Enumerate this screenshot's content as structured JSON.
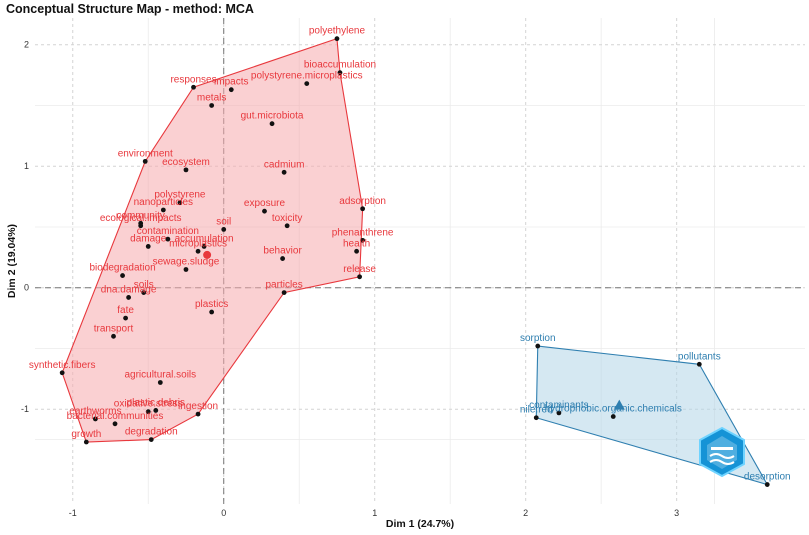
{
  "title": "Conceptual Structure Map - method: MCA",
  "chart_data": {
    "type": "scatter",
    "title": "Conceptual Structure Map - method: MCA",
    "xlabel": "Dim 1 (24.7%)",
    "ylabel": "Dim 2 (19.04%)",
    "xlim": [
      -1.25,
      3.85
    ],
    "ylim": [
      -1.78,
      2.22
    ],
    "x_ticks": [
      -1,
      0,
      1,
      2,
      3
    ],
    "y_ticks": [
      -1,
      0,
      1,
      2
    ],
    "grid": true,
    "clusters": [
      {
        "color": "#e8383d",
        "fill": "#f6a9ad",
        "centroid": [
          -0.11,
          0.27
        ],
        "hull": [
          "polyethylene",
          "bioaccumulation",
          "adsorption",
          "release",
          "particles",
          "ingestion",
          "degradation",
          "growth",
          "synthetic.fibers",
          "environment",
          "responses"
        ],
        "points": [
          {
            "label": "polyethylene",
            "x": 0.75,
            "y": 2.05
          },
          {
            "label": "bioaccumulation",
            "x": 0.77,
            "y": 1.77
          },
          {
            "label": "polystyrene.microplastics",
            "x": 0.55,
            "y": 1.68
          },
          {
            "label": "responses",
            "x": -0.2,
            "y": 1.65
          },
          {
            "label": "impacts",
            "x": 0.05,
            "y": 1.63
          },
          {
            "label": "metals",
            "x": -0.08,
            "y": 1.5
          },
          {
            "label": "gut.microbiota",
            "x": 0.32,
            "y": 1.35
          },
          {
            "label": "environment",
            "x": -0.52,
            "y": 1.04
          },
          {
            "label": "ecosystem",
            "x": -0.25,
            "y": 0.97
          },
          {
            "label": "cadmium",
            "x": 0.4,
            "y": 0.95
          },
          {
            "label": "polystyrene",
            "x": -0.29,
            "y": 0.7
          },
          {
            "label": "adsorption",
            "x": 0.92,
            "y": 0.65
          },
          {
            "label": "nanoparticles",
            "x": -0.4,
            "y": 0.64
          },
          {
            "label": "exposure",
            "x": 0.27,
            "y": 0.63
          },
          {
            "label": "community",
            "x": -0.55,
            "y": 0.53
          },
          {
            "label": "ecological.impacts",
            "x": -0.55,
            "y": 0.51
          },
          {
            "label": "contamination",
            "x": -0.37,
            "y": 0.4
          },
          {
            "label": "soil",
            "x": 0.0,
            "y": 0.48
          },
          {
            "label": "toxicity",
            "x": 0.42,
            "y": 0.51
          },
          {
            "label": "phenanthrene",
            "x": 0.92,
            "y": 0.39
          },
          {
            "label": "accumulation",
            "x": -0.13,
            "y": 0.34
          },
          {
            "label": "damage",
            "x": -0.5,
            "y": 0.34
          },
          {
            "label": "microplastics",
            "x": -0.17,
            "y": 0.3
          },
          {
            "label": "health",
            "x": 0.88,
            "y": 0.3
          },
          {
            "label": "behavior",
            "x": 0.39,
            "y": 0.24
          },
          {
            "label": "sewage.sludge",
            "x": -0.25,
            "y": 0.15
          },
          {
            "label": "biodegradation",
            "x": -0.67,
            "y": 0.1
          },
          {
            "label": "release",
            "x": 0.9,
            "y": 0.09
          },
          {
            "label": "soils",
            "x": -0.53,
            "y": -0.04
          },
          {
            "label": "particles",
            "x": 0.4,
            "y": -0.04
          },
          {
            "label": "dna.damage",
            "x": -0.63,
            "y": -0.08
          },
          {
            "label": "fate",
            "x": -0.65,
            "y": -0.25
          },
          {
            "label": "plastics",
            "x": -0.08,
            "y": -0.2
          },
          {
            "label": "transport",
            "x": -0.73,
            "y": -0.4
          },
          {
            "label": "synthetic.fibers",
            "x": -1.07,
            "y": -0.7
          },
          {
            "label": "agricultural.soils",
            "x": -0.42,
            "y": -0.78
          },
          {
            "label": "oxidative.stress",
            "x": -0.5,
            "y": -1.02
          },
          {
            "label": "plastic.debris",
            "x": -0.45,
            "y": -1.01
          },
          {
            "label": "ingestion",
            "x": -0.17,
            "y": -1.04
          },
          {
            "label": "earthworms",
            "x": -0.85,
            "y": -1.08
          },
          {
            "label": "bacterial.communities",
            "x": -0.72,
            "y": -1.12
          },
          {
            "label": "growth",
            "x": -0.91,
            "y": -1.27
          },
          {
            "label": "degradation",
            "x": -0.48,
            "y": -1.25
          }
        ]
      },
      {
        "color": "#2f7fb0",
        "fill": "#b3d5e8",
        "centroid": [
          2.62,
          -0.97
        ],
        "hull": [
          "sorption",
          "pollutants",
          "desorption",
          "nile.red"
        ],
        "points": [
          {
            "label": "sorption",
            "x": 2.08,
            "y": -0.48
          },
          {
            "label": "pollutants",
            "x": 3.15,
            "y": -0.63
          },
          {
            "label": "contaminants",
            "x": 2.22,
            "y": -1.03
          },
          {
            "label": "nile.red",
            "x": 2.07,
            "y": -1.07
          },
          {
            "label": "hydrophobic.organic.chemicals",
            "x": 2.58,
            "y": -1.06
          },
          {
            "label": "desorption",
            "x": 3.6,
            "y": -1.62
          }
        ]
      }
    ]
  }
}
